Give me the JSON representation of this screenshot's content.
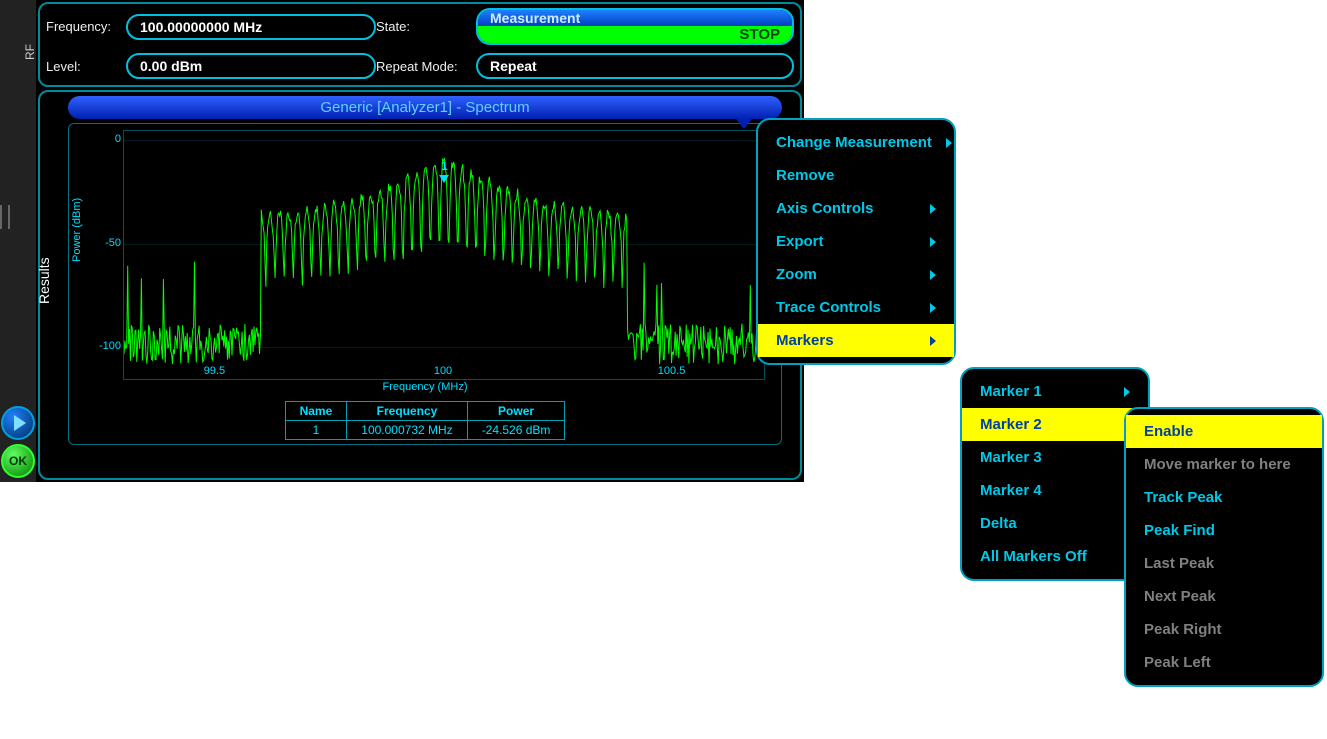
{
  "colors": {
    "panel_border": "#008a9a",
    "pill_border": "#00c0e0",
    "accent_text": "#00c8e8",
    "highlight_bg": "#ffff00",
    "highlight_fg": "#0040a0",
    "trace": "#00ff00",
    "axis_text": "#00dfff",
    "marker": "#00e0ff",
    "header_grad_top": "#2080ff",
    "header_grad_bot": "#0040c0",
    "state_val_bg": "#00ff00",
    "state_val_fg": "#004000"
  },
  "header": {
    "side_label": "RF",
    "freq_label": "Frequency:",
    "freq_value": "100.00000000 MHz",
    "state_label": "State:",
    "state_title": "Measurement",
    "state_value": "STOP",
    "level_label": "Level:",
    "level_value": "0.00 dBm",
    "repeat_label": "Repeat Mode:",
    "repeat_value": "Repeat"
  },
  "results": {
    "side_label": "Results",
    "title": "Generic [Analyzer1] -  Spectrum",
    "chart": {
      "type": "spectrum",
      "ylabel": "Power (dBm)",
      "xlabel": "Frequency (MHz)",
      "ylim": [
        -115,
        5
      ],
      "yticks": [
        0,
        -50,
        -100
      ],
      "xlim": [
        99.3,
        100.7
      ],
      "xticks": [
        99.5,
        100,
        100.5
      ],
      "marker": {
        "id": "1",
        "x": 100.000732
      },
      "trace_color": "#00ff00",
      "background": "#000000",
      "grid_color": "rgba(0,180,200,0.15)",
      "series_band": {
        "center": 100.0,
        "half_width": 0.4,
        "peak_top": -8,
        "peak_mid": -35,
        "floor_mean": -98,
        "floor_jitter": 10,
        "comb_step_mhz": 0.02
      }
    },
    "marker_table": {
      "columns": [
        "Name",
        "Frequency",
        "Power"
      ],
      "rows": [
        [
          "1",
          "100.000732 MHz",
          "-24.526 dBm"
        ]
      ]
    }
  },
  "ok_label": "OK",
  "menus": {
    "main": {
      "items": [
        {
          "label": "Change Measurement",
          "sub": true
        },
        {
          "label": "Remove"
        },
        {
          "label": "Axis Controls",
          "sub": true
        },
        {
          "label": "Export",
          "sub": true
        },
        {
          "label": "Zoom",
          "sub": true
        },
        {
          "label": "Trace Controls",
          "sub": true
        },
        {
          "label": "Markers",
          "sub": true,
          "hl": true
        }
      ]
    },
    "markers": {
      "items": [
        {
          "label": "Marker 1",
          "sub": true
        },
        {
          "label": "Marker 2",
          "sub": true,
          "hl": true
        },
        {
          "label": "Marker 3",
          "sub": true
        },
        {
          "label": "Marker 4",
          "sub": true
        },
        {
          "label": "Delta",
          "sub": true
        },
        {
          "label": "All Markers Off"
        }
      ]
    },
    "marker2": {
      "items": [
        {
          "label": "Enable",
          "hl": true
        },
        {
          "label": "Move marker to here",
          "disabled": true
        },
        {
          "label": "Track Peak"
        },
        {
          "label": "Peak Find"
        },
        {
          "label": "Last Peak",
          "disabled": true
        },
        {
          "label": "Next Peak",
          "disabled": true
        },
        {
          "label": "Peak Right",
          "disabled": true
        },
        {
          "label": "Peak Left",
          "disabled": true
        }
      ]
    }
  }
}
